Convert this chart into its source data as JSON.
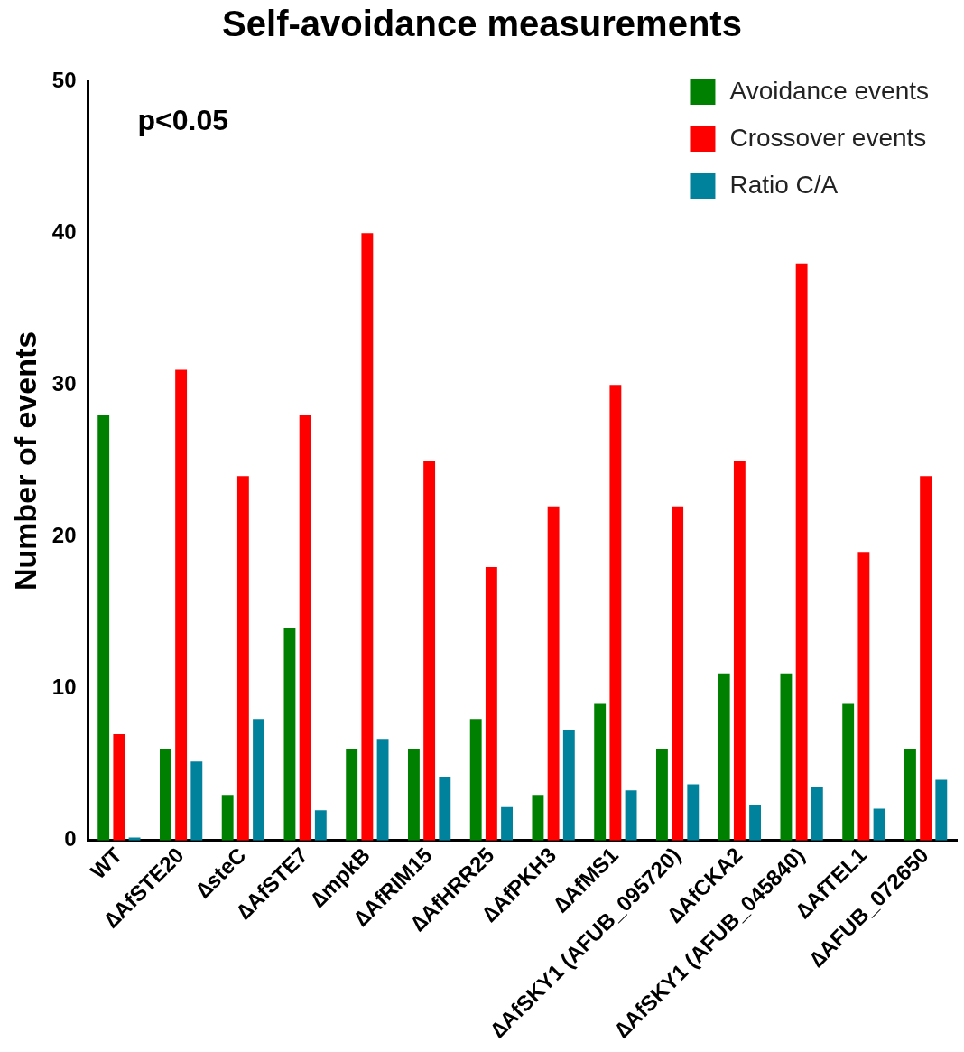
{
  "chart_data": {
    "type": "bar",
    "title": "Self-avoidance measurements",
    "ylabel": "Number of events",
    "categories": [
      "WT",
      "∆AfSTE20",
      "∆steC",
      "∆AfSTE7",
      "∆mpkB",
      "∆AfRIM15",
      "∆AfHRR25",
      "∆AfPKH3",
      "∆AfMS1",
      "∆AfSKY1 (AFUB_095720)",
      "∆AfCKA2",
      "∆AfSKY1 (AFUB_045840)",
      "∆AfTEL1",
      "∆AFUB_072650"
    ],
    "series": [
      {
        "name": "Avoidance events",
        "color": "#008000",
        "values": [
          28,
          6,
          3,
          14,
          6,
          6,
          8,
          3,
          9,
          6,
          11,
          11,
          9,
          6
        ]
      },
      {
        "name": "Crossover events",
        "color": "#ff0000",
        "values": [
          7,
          31,
          24,
          28,
          40,
          25,
          18,
          22,
          30,
          22,
          25,
          38,
          19,
          24
        ]
      },
      {
        "name": "Ratio C/A",
        "color": "#00819c",
        "values": [
          0.2,
          5.2,
          8,
          2,
          6.7,
          4.2,
          2.2,
          7.3,
          3.3,
          3.7,
          2.3,
          3.5,
          2.1,
          4
        ]
      }
    ],
    "ylim": [
      0,
      50
    ],
    "yticks": [
      0,
      10,
      20,
      30,
      40,
      50
    ],
    "grid": false,
    "legend": "top right",
    "annotations": [
      "p<0.05"
    ]
  }
}
